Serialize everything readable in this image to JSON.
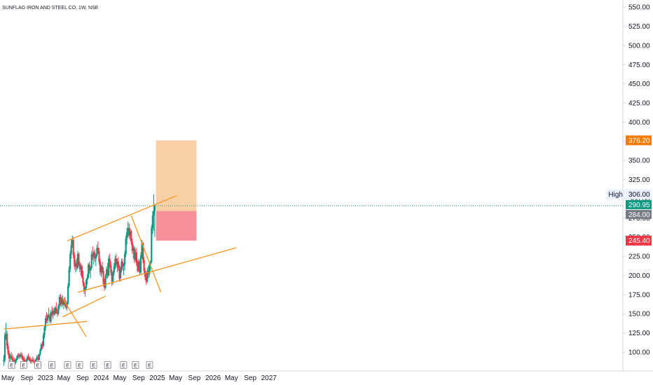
{
  "header": {
    "title": "SUNFLAG IRON AND STEEL CO, 1W, NSE"
  },
  "colors": {
    "up": "#089981",
    "down": "#f23645",
    "trend": "#f7931a",
    "current_line": "#089981",
    "target_zone": "#f9cfa5",
    "stop_zone": "#f7909a",
    "target_tag": "#f57c00",
    "stop_tag": "#f23645",
    "price_tag": "#089981",
    "open_tag": "#787b86"
  },
  "price_tags": {
    "high_label": "High",
    "high_value": "306.00",
    "target": "376.20",
    "current": "290.95",
    "entry": "284.00",
    "stop": "245.40"
  },
  "earnings_marker": "E",
  "chart_data": {
    "type": "candlestick",
    "title": "SUNFLAG IRON AND STEEL CO, 1W, NSE",
    "ylim": [
      90,
      560
    ],
    "y_ticks": [
      "100.00",
      "125.00",
      "150.00",
      "175.00",
      "200.00",
      "225.00",
      "250.00",
      "275.00",
      "300.00",
      "325.00",
      "350.00",
      "375.00",
      "400.00",
      "425.00",
      "450.00",
      "475.00",
      "500.00",
      "525.00",
      "550.00"
    ],
    "x_ticks": [
      {
        "label": "May",
        "date": "2022-05-01"
      },
      {
        "label": "Sep",
        "date": "2022-09-01"
      },
      {
        "label": "2023",
        "date": "2023-01-01"
      },
      {
        "label": "May",
        "date": "2023-05-01"
      },
      {
        "label": "Sep",
        "date": "2023-09-01"
      },
      {
        "label": "2024",
        "date": "2024-01-01"
      },
      {
        "label": "May",
        "date": "2024-05-01"
      },
      {
        "label": "Sep",
        "date": "2024-09-01"
      },
      {
        "label": "2025",
        "date": "2025-01-01"
      },
      {
        "label": "May",
        "date": "2025-05-01"
      },
      {
        "label": "Sep",
        "date": "2025-09-01"
      },
      {
        "label": "2026",
        "date": "2026-01-01"
      },
      {
        "label": "May",
        "date": "2026-05-01"
      },
      {
        "label": "Sep",
        "date": "2026-09-01"
      },
      {
        "label": "2027",
        "date": "2027-01-01"
      }
    ],
    "earnings_dates": [
      "2022-05-25",
      "2022-08-12",
      "2022-11-12",
      "2023-02-12",
      "2023-05-26",
      "2023-08-12",
      "2023-11-12",
      "2024-02-12",
      "2024-05-26",
      "2024-08-12",
      "2024-11-12"
    ],
    "candles": [
      [
        "2022-04-04",
        88,
        96,
        82,
        90
      ],
      [
        "2022-04-11",
        90,
        126,
        86,
        122
      ],
      [
        "2022-04-18",
        122,
        138,
        116,
        124
      ],
      [
        "2022-04-25",
        124,
        128,
        104,
        108
      ],
      [
        "2022-05-02",
        108,
        112,
        96,
        98
      ],
      [
        "2022-05-09",
        98,
        102,
        88,
        92
      ],
      [
        "2022-05-16",
        92,
        98,
        86,
        95
      ],
      [
        "2022-05-23",
        95,
        100,
        90,
        93
      ],
      [
        "2022-05-30",
        93,
        97,
        88,
        90
      ],
      [
        "2022-06-06",
        90,
        94,
        85,
        88
      ],
      [
        "2022-06-13",
        88,
        92,
        83,
        86
      ],
      [
        "2022-06-20",
        86,
        92,
        84,
        90
      ],
      [
        "2022-06-27",
        90,
        95,
        87,
        92
      ],
      [
        "2022-07-04",
        92,
        98,
        90,
        96
      ],
      [
        "2022-07-11",
        96,
        99,
        92,
        94
      ],
      [
        "2022-07-18",
        94,
        98,
        91,
        97
      ],
      [
        "2022-07-25",
        97,
        100,
        93,
        95
      ],
      [
        "2022-08-01",
        95,
        99,
        90,
        92
      ],
      [
        "2022-08-08",
        92,
        96,
        88,
        90
      ],
      [
        "2022-08-15",
        90,
        94,
        86,
        88
      ],
      [
        "2022-08-22",
        88,
        92,
        84,
        87
      ],
      [
        "2022-08-29",
        87,
        91,
        84,
        89
      ],
      [
        "2022-09-05",
        89,
        96,
        88,
        94
      ],
      [
        "2022-09-12",
        94,
        98,
        90,
        92
      ],
      [
        "2022-09-19",
        92,
        95,
        87,
        89
      ],
      [
        "2022-09-26",
        89,
        93,
        85,
        88
      ],
      [
        "2022-10-03",
        88,
        92,
        85,
        90
      ],
      [
        "2022-10-10",
        90,
        94,
        87,
        88
      ],
      [
        "2022-10-17",
        88,
        92,
        85,
        87
      ],
      [
        "2022-10-24",
        87,
        90,
        84,
        86
      ],
      [
        "2022-10-31",
        86,
        92,
        85,
        91
      ],
      [
        "2022-11-07",
        91,
        96,
        89,
        94
      ],
      [
        "2022-11-14",
        94,
        97,
        88,
        90
      ],
      [
        "2022-11-21",
        90,
        98,
        89,
        97
      ],
      [
        "2022-11-28",
        97,
        105,
        95,
        103
      ],
      [
        "2022-12-05",
        103,
        112,
        101,
        110
      ],
      [
        "2022-12-12",
        110,
        114,
        104,
        108
      ],
      [
        "2022-12-19",
        108,
        125,
        106,
        122
      ],
      [
        "2022-12-26",
        122,
        135,
        118,
        132
      ],
      [
        "2023-01-02",
        132,
        148,
        128,
        144
      ],
      [
        "2023-01-09",
        144,
        152,
        138,
        141
      ],
      [
        "2023-01-16",
        141,
        150,
        137,
        148
      ],
      [
        "2023-01-23",
        148,
        158,
        144,
        146
      ],
      [
        "2023-01-30",
        146,
        150,
        138,
        140
      ],
      [
        "2023-02-06",
        140,
        155,
        137,
        152
      ],
      [
        "2023-02-13",
        152,
        160,
        146,
        149
      ],
      [
        "2023-02-20",
        149,
        157,
        143,
        154
      ],
      [
        "2023-02-27",
        154,
        158,
        147,
        150
      ],
      [
        "2023-03-06",
        150,
        160,
        148,
        158
      ],
      [
        "2023-03-13",
        158,
        165,
        150,
        152
      ],
      [
        "2023-03-20",
        152,
        156,
        146,
        150
      ],
      [
        "2023-03-27",
        150,
        162,
        148,
        160
      ],
      [
        "2023-04-03",
        160,
        175,
        156,
        172
      ],
      [
        "2023-04-10",
        172,
        176,
        160,
        163
      ],
      [
        "2023-04-17",
        163,
        172,
        158,
        170
      ],
      [
        "2023-04-24",
        170,
        174,
        160,
        162
      ],
      [
        "2023-05-01",
        162,
        170,
        156,
        166
      ],
      [
        "2023-05-08",
        166,
        172,
        160,
        162
      ],
      [
        "2023-05-15",
        162,
        168,
        156,
        158
      ],
      [
        "2023-05-22",
        158,
        166,
        154,
        164
      ],
      [
        "2023-05-29",
        164,
        190,
        162,
        186
      ],
      [
        "2023-06-05",
        186,
        212,
        184,
        208
      ],
      [
        "2023-06-12",
        208,
        232,
        204,
        228
      ],
      [
        "2023-06-19",
        228,
        248,
        222,
        240
      ],
      [
        "2023-06-26",
        240,
        252,
        236,
        246
      ],
      [
        "2023-07-03",
        246,
        250,
        222,
        226
      ],
      [
        "2023-07-10",
        226,
        230,
        208,
        212
      ],
      [
        "2023-07-17",
        212,
        220,
        204,
        216
      ],
      [
        "2023-07-24",
        216,
        222,
        206,
        210
      ],
      [
        "2023-07-31",
        210,
        232,
        208,
        228
      ],
      [
        "2023-08-07",
        228,
        230,
        212,
        214
      ],
      [
        "2023-08-14",
        214,
        218,
        204,
        208
      ],
      [
        "2023-08-21",
        208,
        216,
        200,
        212
      ],
      [
        "2023-08-28",
        212,
        214,
        196,
        198
      ],
      [
        "2023-09-04",
        198,
        206,
        186,
        190
      ],
      [
        "2023-09-11",
        190,
        192,
        176,
        180
      ],
      [
        "2023-09-18",
        180,
        186,
        172,
        184
      ],
      [
        "2023-09-25",
        184,
        196,
        180,
        194
      ],
      [
        "2023-10-02",
        194,
        202,
        188,
        198
      ],
      [
        "2023-10-09",
        198,
        216,
        196,
        214
      ],
      [
        "2023-10-16",
        214,
        218,
        202,
        206
      ],
      [
        "2023-10-23",
        206,
        212,
        196,
        210
      ],
      [
        "2023-10-30",
        210,
        232,
        208,
        228
      ],
      [
        "2023-11-06",
        228,
        238,
        220,
        224
      ],
      [
        "2023-11-13",
        224,
        232,
        214,
        230
      ],
      [
        "2023-11-20",
        230,
        234,
        218,
        222
      ],
      [
        "2023-11-27",
        222,
        228,
        212,
        226
      ],
      [
        "2023-12-04",
        226,
        240,
        224,
        236
      ],
      [
        "2023-12-11",
        236,
        244,
        228,
        232
      ],
      [
        "2023-12-18",
        232,
        236,
        214,
        218
      ],
      [
        "2023-12-25",
        218,
        222,
        200,
        204
      ],
      [
        "2024-01-01",
        204,
        214,
        198,
        212
      ],
      [
        "2024-01-08",
        212,
        218,
        202,
        206
      ],
      [
        "2024-01-15",
        206,
        210,
        186,
        190
      ],
      [
        "2024-01-22",
        190,
        196,
        180,
        184
      ],
      [
        "2024-01-29",
        184,
        202,
        182,
        200
      ],
      [
        "2024-02-05",
        200,
        212,
        196,
        208
      ],
      [
        "2024-02-12",
        208,
        216,
        196,
        200
      ],
      [
        "2024-02-19",
        200,
        226,
        198,
        222
      ],
      [
        "2024-02-26",
        222,
        228,
        210,
        214
      ],
      [
        "2024-03-04",
        214,
        218,
        200,
        204
      ],
      [
        "2024-03-11",
        204,
        208,
        186,
        192
      ],
      [
        "2024-03-18",
        192,
        206,
        188,
        204
      ],
      [
        "2024-03-25",
        204,
        216,
        200,
        212
      ],
      [
        "2024-04-01",
        212,
        226,
        208,
        222
      ],
      [
        "2024-04-08",
        222,
        228,
        210,
        214
      ],
      [
        "2024-04-15",
        214,
        222,
        204,
        218
      ],
      [
        "2024-04-22",
        218,
        224,
        206,
        210
      ],
      [
        "2024-04-29",
        210,
        214,
        192,
        196
      ],
      [
        "2024-05-06",
        196,
        212,
        192,
        208
      ],
      [
        "2024-05-13",
        208,
        222,
        204,
        218
      ],
      [
        "2024-05-20",
        218,
        222,
        206,
        212
      ],
      [
        "2024-05-27",
        212,
        216,
        200,
        214
      ],
      [
        "2024-06-03",
        214,
        232,
        206,
        228
      ],
      [
        "2024-06-10",
        228,
        252,
        224,
        248
      ],
      [
        "2024-06-17",
        248,
        262,
        240,
        256
      ],
      [
        "2024-06-24",
        256,
        270,
        250,
        262
      ],
      [
        "2024-07-01",
        262,
        268,
        248,
        252
      ],
      [
        "2024-07-08",
        252,
        262,
        246,
        258
      ],
      [
        "2024-07-15",
        258,
        260,
        240,
        244
      ],
      [
        "2024-07-22",
        244,
        248,
        228,
        232
      ],
      [
        "2024-07-29",
        232,
        240,
        222,
        236
      ],
      [
        "2024-08-05",
        236,
        238,
        216,
        220
      ],
      [
        "2024-08-12",
        220,
        234,
        218,
        230
      ],
      [
        "2024-08-19",
        230,
        236,
        212,
        216
      ],
      [
        "2024-08-26",
        216,
        220,
        204,
        206
      ],
      [
        "2024-09-02",
        206,
        222,
        204,
        218
      ],
      [
        "2024-09-09",
        218,
        220,
        200,
        204
      ],
      [
        "2024-09-16",
        204,
        230,
        202,
        226
      ],
      [
        "2024-09-23",
        226,
        246,
        222,
        242
      ],
      [
        "2024-09-30",
        242,
        244,
        216,
        220
      ],
      [
        "2024-10-07",
        220,
        224,
        202,
        206
      ],
      [
        "2024-10-14",
        206,
        210,
        194,
        198
      ],
      [
        "2024-10-21",
        198,
        204,
        188,
        192
      ],
      [
        "2024-10-28",
        192,
        210,
        190,
        206
      ],
      [
        "2024-11-04",
        206,
        212,
        196,
        202
      ],
      [
        "2024-11-11",
        202,
        216,
        198,
        214
      ],
      [
        "2024-11-18",
        214,
        220,
        206,
        218
      ],
      [
        "2024-11-25",
        218,
        266,
        216,
        262
      ],
      [
        "2024-12-02",
        262,
        284,
        254,
        278
      ],
      [
        "2024-12-09",
        278,
        306,
        258,
        284
      ],
      [
        "2024-12-16",
        284,
        292,
        250,
        290.95
      ]
    ],
    "trendlines": [
      {
        "from": [
          "2022-04-04",
          130
        ],
        "to": [
          "2023-10-01",
          140
        ]
      },
      {
        "from": [
          "2023-04-24",
          170
        ],
        "to": [
          "2023-09-25",
          120
        ]
      },
      {
        "from": [
          "2023-04-24",
          146
        ],
        "to": [
          "2024-01-29",
          173
        ]
      },
      {
        "from": [
          "2023-05-22",
          245
        ],
        "to": [
          "2025-05-08",
          304
        ]
      },
      {
        "from": [
          "2023-08-01",
          178
        ],
        "to": [
          "2026-06-01",
          236
        ]
      },
      {
        "from": [
          "2024-07-15",
          278
        ],
        "to": [
          "2025-01-25",
          178
        ]
      }
    ],
    "position": {
      "start": "2024-12-24",
      "end": "2025-09-15",
      "target": 376.2,
      "entry": 284.0,
      "stop": 245.4
    }
  }
}
